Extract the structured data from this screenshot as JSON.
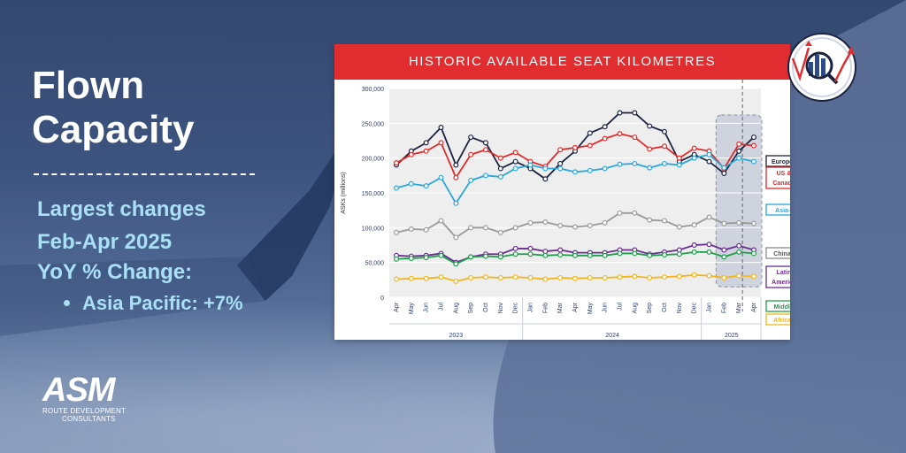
{
  "left": {
    "title_line1": "Flown",
    "title_line2": "Capacity",
    "changes_line1": "Largest changes",
    "changes_line2": "Feb-Apr 2025",
    "yoy": "YoY % Change:",
    "bullet": "Asia Pacific: +7%"
  },
  "logo": {
    "name": "ASM",
    "tag1": "ROUTE DEVELOPMENT",
    "tag2": "CONSULTANTS"
  },
  "chart_header": "HISTORIC AVAILABLE SEAT KILOMETRES",
  "chart_data": {
    "type": "line",
    "title": "HISTORIC AVAILABLE SEAT KILOMETRES",
    "ylabel": "ASKs (millions)",
    "ylim": [
      0,
      300000
    ],
    "yticks": [
      "0",
      "50,000",
      "100,000",
      "150,000",
      "200,000",
      "250,000",
      "300,000"
    ],
    "ytick_values": [
      0,
      50000,
      100000,
      150000,
      200000,
      250000,
      300000
    ],
    "categories": [
      "Apr",
      "May",
      "Jun",
      "Jul",
      "Aug",
      "Sep",
      "Oct",
      "Nov",
      "Dec",
      "Jan",
      "Feb",
      "Mar",
      "Apr",
      "May",
      "Jun",
      "Jul",
      "Aug",
      "Sep",
      "Oct",
      "Nov",
      "Dec",
      "Jan",
      "Feb",
      "Mar",
      "Apr"
    ],
    "years": [
      {
        "label": "2023",
        "start": 0,
        "end": 8
      },
      {
        "label": "2024",
        "start": 9,
        "end": 20
      },
      {
        "label": "2025",
        "start": 21,
        "end": 24
      }
    ],
    "highlight": {
      "start": 22,
      "end": 24
    },
    "dashed_divider_index": 23,
    "grid": true,
    "series": [
      {
        "name": "Europe",
        "label_lines": [
          "Europe"
        ],
        "color": "#1b2340",
        "label_border": "#1b2340",
        "values": [
          190000,
          210000,
          222000,
          244000,
          190000,
          230000,
          222000,
          185000,
          195000,
          185000,
          170000,
          192000,
          210000,
          236000,
          245000,
          265000,
          265000,
          246000,
          238000,
          195000,
          205000,
          195000,
          178000,
          210000,
          230000
        ]
      },
      {
        "name": "US & Canada",
        "label_lines": [
          "US &",
          "Canada"
        ],
        "color": "#e02a2a",
        "label_border": "#e02a2a",
        "values": [
          193000,
          205000,
          210000,
          222000,
          172000,
          205000,
          212000,
          200000,
          208000,
          195000,
          188000,
          212000,
          215000,
          218000,
          228000,
          235000,
          230000,
          213000,
          217000,
          200000,
          214000,
          210000,
          185000,
          220000,
          218000
        ]
      },
      {
        "name": "Asia-Pacific",
        "label_lines": [
          "Asia-Pacific"
        ],
        "color": "#2aa7db",
        "label_border": "#2aa7db",
        "values": [
          157000,
          163000,
          160000,
          172000,
          135000,
          168000,
          175000,
          173000,
          185000,
          190000,
          185000,
          185000,
          180000,
          182000,
          185000,
          191000,
          192000,
          186000,
          192000,
          190000,
          200000,
          205000,
          186000,
          200000,
          195000
        ]
      },
      {
        "name": "China",
        "label_lines": [
          "China"
        ],
        "color": "#9a9a9a",
        "label_border": "#8a8a8a",
        "values": [
          93000,
          98000,
          97000,
          110000,
          86000,
          100000,
          100000,
          93000,
          100000,
          107000,
          108000,
          103000,
          101000,
          103000,
          107000,
          121000,
          121000,
          111000,
          110000,
          101000,
          104000,
          115000,
          106000,
          107000,
          106000
        ]
      },
      {
        "name": "Latin America",
        "label_lines": [
          "Latin",
          "America"
        ],
        "color": "#6a2d91",
        "label_border": "#6a2d91",
        "values": [
          60000,
          59000,
          60000,
          63000,
          50000,
          58000,
          62000,
          62000,
          70000,
          70000,
          66000,
          68000,
          64000,
          64000,
          64000,
          68000,
          68000,
          62000,
          65000,
          68000,
          75000,
          76000,
          68000,
          74000,
          68000
        ]
      },
      {
        "name": "Middle East",
        "label_lines": [
          "Middle East"
        ],
        "color": "#1e9e4a",
        "label_border": "#1e9e4a",
        "values": [
          55000,
          56000,
          57000,
          60000,
          48000,
          58000,
          59000,
          58000,
          62000,
          62000,
          60000,
          61000,
          60000,
          60000,
          60000,
          63000,
          63000,
          60000,
          61000,
          62000,
          65000,
          65000,
          58000,
          65000,
          63000
        ]
      },
      {
        "name": "Africa",
        "label_lines": [
          "Africa"
        ],
        "color": "#f2b61c",
        "label_border": "#f2b61c",
        "values": [
          26000,
          27000,
          27000,
          29000,
          23000,
          28000,
          29000,
          28000,
          29000,
          28000,
          26000,
          28000,
          27000,
          28000,
          28000,
          29000,
          30000,
          28000,
          29000,
          30000,
          32000,
          31000,
          28000,
          31000,
          30000
        ]
      }
    ]
  }
}
